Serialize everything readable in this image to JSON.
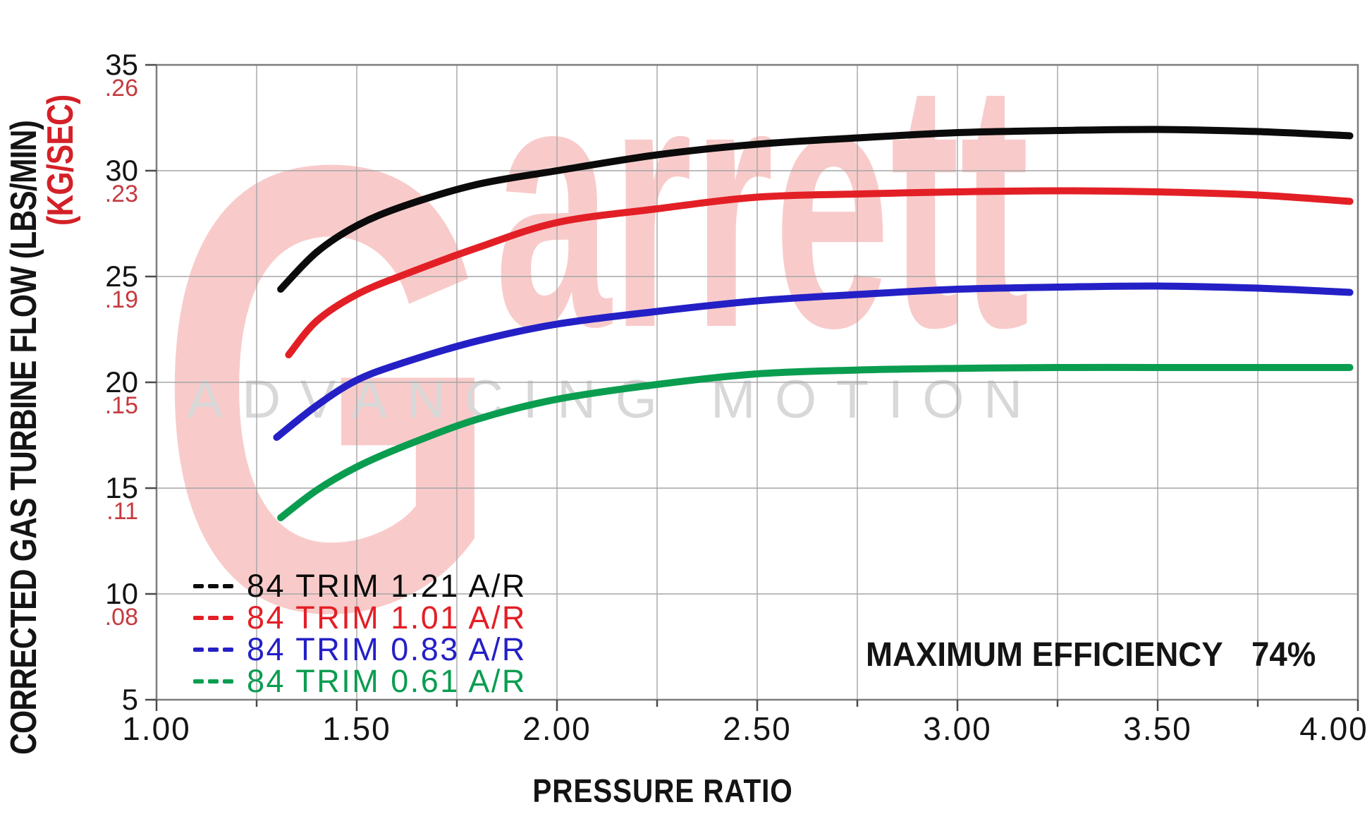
{
  "chart_data": {
    "type": "line",
    "xlabel": "PRESSURE RATIO",
    "ylabel_lbs": "CORRECTED GAS TURBINE FLOW (LBS/MIN)",
    "ylabel_kg": "(KG/SEC)",
    "xlim": [
      1.0,
      4.0
    ],
    "ylim": [
      5,
      35
    ],
    "x_grid_step": 0.25,
    "x_tick_step": 0.5,
    "y_grid_step": 5,
    "grid": true,
    "legend_position": "bottom-left",
    "x_tick_labels": [
      "1.00",
      "1.50",
      "2.00",
      "2.50",
      "3.00",
      "3.50",
      "4.00"
    ],
    "y_tick_pairs": [
      {
        "value": 35,
        "lbs_min": "35",
        "kg_sec": ".26"
      },
      {
        "value": 30,
        "lbs_min": "30",
        "kg_sec": ".23"
      },
      {
        "value": 25,
        "lbs_min": "25",
        "kg_sec": ".19"
      },
      {
        "value": 20,
        "lbs_min": "20",
        "kg_sec": ".15"
      },
      {
        "value": 15,
        "lbs_min": "15",
        "kg_sec": ".11"
      },
      {
        "value": 10,
        "lbs_min": "10",
        "kg_sec": ".08"
      },
      {
        "value": 5,
        "lbs_min": "5",
        "kg_sec": ""
      }
    ],
    "series": [
      {
        "name": "84 TRIM 1.21 A/R",
        "color": "#0b0b0b",
        "points": [
          [
            1.31,
            24.4
          ],
          [
            1.4,
            26.15
          ],
          [
            1.5,
            27.4
          ],
          [
            1.62,
            28.35
          ],
          [
            1.8,
            29.35
          ],
          [
            2.0,
            30.0
          ],
          [
            2.25,
            30.75
          ],
          [
            2.5,
            31.25
          ],
          [
            2.75,
            31.55
          ],
          [
            3.0,
            31.8
          ],
          [
            3.25,
            31.9
          ],
          [
            3.5,
            31.95
          ],
          [
            3.75,
            31.85
          ],
          [
            3.98,
            31.65
          ]
        ]
      },
      {
        "name": "84 TRIM 1.01 A/R",
        "color": "#e31f26",
        "points": [
          [
            1.33,
            21.3
          ],
          [
            1.4,
            22.9
          ],
          [
            1.5,
            24.15
          ],
          [
            1.62,
            25.1
          ],
          [
            1.8,
            26.35
          ],
          [
            2.0,
            27.55
          ],
          [
            2.25,
            28.2
          ],
          [
            2.5,
            28.75
          ],
          [
            2.75,
            28.9
          ],
          [
            3.0,
            29.0
          ],
          [
            3.25,
            29.05
          ],
          [
            3.5,
            29.0
          ],
          [
            3.75,
            28.85
          ],
          [
            3.98,
            28.55
          ]
        ]
      },
      {
        "name": "84 TRIM 0.83 A/R",
        "color": "#2420c6",
        "points": [
          [
            1.3,
            17.4
          ],
          [
            1.4,
            18.9
          ],
          [
            1.5,
            20.1
          ],
          [
            1.62,
            20.95
          ],
          [
            1.8,
            21.95
          ],
          [
            2.0,
            22.75
          ],
          [
            2.25,
            23.35
          ],
          [
            2.5,
            23.85
          ],
          [
            2.75,
            24.15
          ],
          [
            3.0,
            24.4
          ],
          [
            3.25,
            24.5
          ],
          [
            3.5,
            24.55
          ],
          [
            3.75,
            24.45
          ],
          [
            3.98,
            24.25
          ]
        ]
      },
      {
        "name": "84 TRIM 0.61 A/R",
        "color": "#0a9d50",
        "points": [
          [
            1.31,
            13.6
          ],
          [
            1.4,
            14.9
          ],
          [
            1.5,
            16.0
          ],
          [
            1.62,
            17.0
          ],
          [
            1.8,
            18.25
          ],
          [
            2.0,
            19.2
          ],
          [
            2.25,
            19.9
          ],
          [
            2.5,
            20.4
          ],
          [
            2.75,
            20.58
          ],
          [
            3.0,
            20.66
          ],
          [
            3.25,
            20.7
          ],
          [
            3.5,
            20.7
          ],
          [
            3.75,
            20.7
          ],
          [
            3.98,
            20.7
          ]
        ]
      }
    ],
    "annotation": {
      "label": "MAXIMUM EFFICIENCY",
      "value": "74%"
    },
    "watermark": {
      "brand": "Garrett",
      "tagline": "ADVANCING MOTION"
    }
  },
  "colors": {
    "grid": "#a6a6a6",
    "border": "#7c7c7c",
    "tick": "#4a4a4a",
    "axis_text": "#141414",
    "kg_tick_text": "#c63a40",
    "kg_title_text": "#d42027",
    "watermark_pink": "#f8cbca",
    "watermark_gray": "#d8d8d8",
    "background": "#ffffff"
  }
}
